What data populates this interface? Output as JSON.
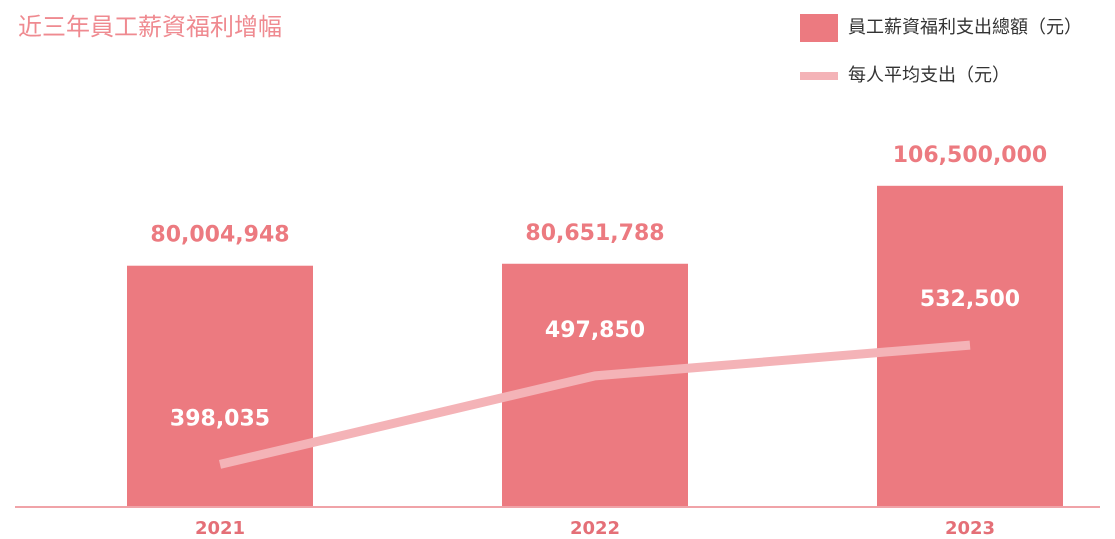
{
  "chart_data": {
    "type": "bar_line",
    "title": "近三年員工薪資福利增幅",
    "categories": [
      "2021",
      "2022",
      "2023"
    ],
    "series": [
      {
        "name": "員工薪資福利支出總額（元）",
        "type": "bar",
        "color": "#ec7a80",
        "values": [
          80004948,
          80651788,
          106500000
        ],
        "value_labels": [
          "80,004,948",
          "80,651,788",
          "106,500,000"
        ]
      },
      {
        "name": "每人平均支出（元）",
        "type": "line",
        "axis": "y2",
        "color": "#f4b3b7",
        "values": [
          398035,
          497850,
          532500
        ],
        "value_labels": [
          "398,035",
          "497,850",
          "532,500"
        ]
      }
    ],
    "ylim": [
      0,
      125000000
    ],
    "y2lim": [
      350000,
      775000
    ],
    "legend": "top-right"
  }
}
